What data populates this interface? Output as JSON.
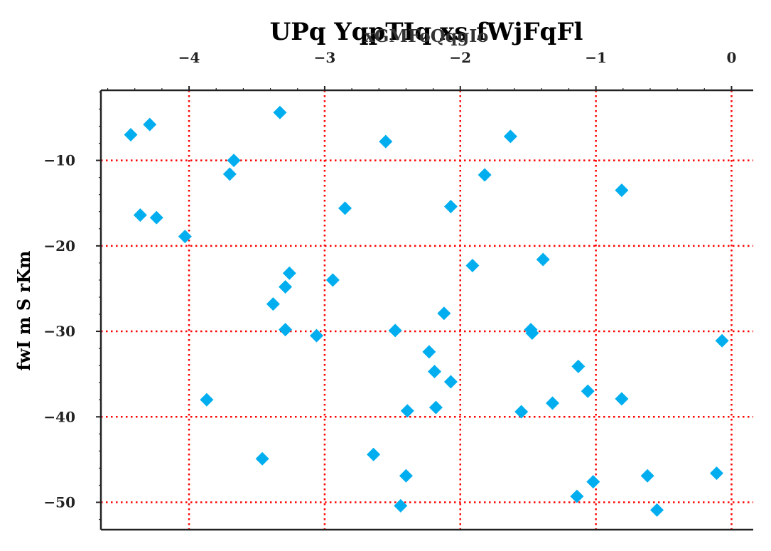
{
  "chart_data": {
    "type": "scatter",
    "title": "UPq YqpTIq xs fWjFqFl",
    "xlabel": "xGMFoQqgIo",
    "ylabel": "fwI m S rKm",
    "xlim": [
      -4.65,
      0.16
    ],
    "ylim": [
      -53.2,
      -1.8
    ],
    "x_ticks": [
      -4,
      -3,
      -2,
      -1,
      0
    ],
    "y_ticks": [
      -10,
      -20,
      -30,
      -40,
      -50
    ],
    "x_tick_labels": [
      "−4",
      "−3",
      "−2",
      "−1",
      "0"
    ],
    "y_tick_labels": [
      "−10",
      "−20",
      "−30",
      "−40",
      "−50"
    ],
    "grid": true,
    "x_axis_position": "top",
    "colors": {
      "marker": "#00aeef",
      "grid": "#ff0000",
      "axis": "#222222"
    },
    "series": [
      {
        "marker": "diamond",
        "points": [
          [
            -4.43,
            -7.0
          ],
          [
            -4.29,
            -5.8
          ],
          [
            -4.36,
            -16.4
          ],
          [
            -4.24,
            -16.7
          ],
          [
            -4.03,
            -18.9
          ],
          [
            -3.87,
            -38.0
          ],
          [
            -3.67,
            -10.0
          ],
          [
            -3.7,
            -11.6
          ],
          [
            -3.33,
            -4.4
          ],
          [
            -3.46,
            -44.9
          ],
          [
            -3.38,
            -26.8
          ],
          [
            -3.29,
            -24.8
          ],
          [
            -3.26,
            -23.2
          ],
          [
            -3.29,
            -29.8
          ],
          [
            -3.06,
            -30.5
          ],
          [
            -2.94,
            -24.0
          ],
          [
            -2.85,
            -15.6
          ],
          [
            -2.55,
            -7.8
          ],
          [
            -2.48,
            -29.9
          ],
          [
            -2.64,
            -44.4
          ],
          [
            -2.44,
            -50.4
          ],
          [
            -2.4,
            -46.9
          ],
          [
            -2.39,
            -39.3
          ],
          [
            -2.23,
            -32.4
          ],
          [
            -2.19,
            -34.7
          ],
          [
            -2.18,
            -38.9
          ],
          [
            -2.12,
            -27.9
          ],
          [
            -2.07,
            -35.9
          ],
          [
            -2.07,
            -15.4
          ],
          [
            -1.91,
            -22.3
          ],
          [
            -1.82,
            -11.7
          ],
          [
            -1.63,
            -7.2
          ],
          [
            -1.55,
            -39.4
          ],
          [
            -1.48,
            -29.8
          ],
          [
            -1.47,
            -30.2
          ],
          [
            -1.39,
            -21.6
          ],
          [
            -1.32,
            -38.4
          ],
          [
            -1.13,
            -34.1
          ],
          [
            -1.14,
            -49.3
          ],
          [
            -1.06,
            -37.0
          ],
          [
            -1.02,
            -47.6
          ],
          [
            -0.81,
            -13.5
          ],
          [
            -0.81,
            -37.9
          ],
          [
            -0.62,
            -46.9
          ],
          [
            -0.55,
            -50.9
          ],
          [
            -0.11,
            -46.6
          ],
          [
            -0.07,
            -31.1
          ]
        ]
      }
    ]
  }
}
